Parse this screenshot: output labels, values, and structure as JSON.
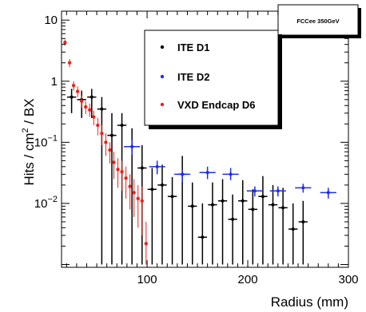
{
  "colors": {
    "ITE D1": "#000000",
    "ITE D2": "#1f2ee6",
    "VXD Endcap D6": "#e8231c"
  },
  "chart_data": {
    "type": "scatter",
    "title": "",
    "tag": "FCCee 350GeV",
    "xlabel": "Radius (mm)",
    "ylabel_parts": {
      "prefix": "Hits / cm",
      "sup": "2",
      "suffix": " / BX"
    },
    "xlim": [
      15,
      300
    ],
    "ylim": [
      0.0009,
      14
    ],
    "yscale": "log",
    "x_ticks": [
      {
        "value": 100,
        "label": "100"
      },
      {
        "value": 200,
        "label": "200"
      },
      {
        "value": 300,
        "label": "300"
      }
    ],
    "y_ticks": [
      {
        "value": 10,
        "base": "10",
        "exp": ""
      },
      {
        "value": 1,
        "base": "1",
        "exp": ""
      },
      {
        "value": 0.1,
        "base": "10",
        "exp": "−1"
      },
      {
        "value": 0.01,
        "base": "10",
        "exp": "−2"
      }
    ],
    "legend": {
      "placement": "top-center"
    },
    "series": [
      {
        "name": "ITE D1",
        "marker": "black-dot-with-errors",
        "points": [
          {
            "x": 25,
            "xerr": 4.5,
            "y": 0.55,
            "ylo": 0.3,
            "yhi": 0.75
          },
          {
            "x": 35,
            "xerr": 4.5,
            "y": 0.5,
            "ylo": 0.25,
            "yhi": 0.7
          },
          {
            "x": 45,
            "xerr": 4.5,
            "y": 0.55,
            "ylo": 0.25,
            "yhi": 0.75
          },
          {
            "x": 55,
            "xerr": 4.5,
            "y": 0.35,
            "ylo": 0.001,
            "yhi": 0.55
          },
          {
            "x": 65,
            "xerr": 4.5,
            "y": 0.13,
            "ylo": 0.001,
            "yhi": 0.3
          },
          {
            "x": 75,
            "xerr": 4.5,
            "y": 0.19,
            "ylo": 0.001,
            "yhi": 0.3
          },
          {
            "x": 85,
            "xerr": 4.5,
            "y": 0.085,
            "ylo": 0.001,
            "yhi": 0.17
          },
          {
            "x": 95,
            "xerr": 4.5,
            "y": 0.038,
            "ylo": 0.001,
            "yhi": 0.09
          },
          {
            "x": 105,
            "xerr": 4.5,
            "y": 0.017,
            "ylo": 0.001,
            "yhi": 0.038
          },
          {
            "x": 115,
            "xerr": 4.5,
            "y": 0.02,
            "ylo": 0.001,
            "yhi": 0.043
          },
          {
            "x": 125,
            "xerr": 4.5,
            "y": 0.013,
            "ylo": 0.001,
            "yhi": 0.027
          },
          {
            "x": 135,
            "xerr": 4.5,
            "y": 0.03,
            "ylo": 0.001,
            "yhi": 0.06
          },
          {
            "x": 145,
            "xerr": 4.5,
            "y": 0.009,
            "ylo": 0.001,
            "yhi": 0.022
          },
          {
            "x": 155,
            "xerr": 4.5,
            "y": 0.0028,
            "ylo": 0.001,
            "yhi": 0.01
          },
          {
            "x": 165,
            "xerr": 4.5,
            "y": 0.0095,
            "ylo": 0.001,
            "yhi": 0.022
          },
          {
            "x": 175,
            "xerr": 4.5,
            "y": 0.011,
            "ylo": 0.001,
            "yhi": 0.025
          },
          {
            "x": 185,
            "xerr": 4.5,
            "y": 0.0055,
            "ylo": 0.001,
            "yhi": 0.014
          },
          {
            "x": 195,
            "xerr": 4.5,
            "y": 0.011,
            "ylo": 0.001,
            "yhi": 0.024
          },
          {
            "x": 205,
            "xerr": 4.5,
            "y": 0.008,
            "ylo": 0.001,
            "yhi": 0.017
          },
          {
            "x": 215,
            "xerr": 4.5,
            "y": 0.013,
            "ylo": 0.001,
            "yhi": 0.028
          },
          {
            "x": 225,
            "xerr": 4.5,
            "y": 0.0095,
            "ylo": 0.001,
            "yhi": 0.02
          },
          {
            "x": 235,
            "xerr": 4.5,
            "y": 0.0085,
            "ylo": 0.001,
            "yhi": 0.018
          },
          {
            "x": 245,
            "xerr": 4.5,
            "y": 0.0038,
            "ylo": 0.001,
            "yhi": 0.01
          },
          {
            "x": 255,
            "xerr": 4.5,
            "y": 0.005,
            "ylo": 0.001,
            "yhi": 0.011
          }
        ]
      },
      {
        "name": "ITE D2",
        "marker": "blue-cross",
        "points": [
          {
            "x": 85,
            "xerr": 8,
            "y": 0.085,
            "ylo": 0.062,
            "yhi": 0.11
          },
          {
            "x": 110,
            "xerr": 8,
            "y": 0.04,
            "ylo": 0.03,
            "yhi": 0.05
          },
          {
            "x": 135,
            "xerr": 8,
            "y": 0.03,
            "ylo": 0.022,
            "yhi": 0.036
          },
          {
            "x": 160,
            "xerr": 8,
            "y": 0.032,
            "ylo": 0.025,
            "yhi": 0.04
          },
          {
            "x": 183,
            "xerr": 8,
            "y": 0.03,
            "ylo": 0.024,
            "yhi": 0.038
          },
          {
            "x": 207,
            "xerr": 8,
            "y": 0.016,
            "ylo": 0.013,
            "yhi": 0.019
          },
          {
            "x": 230,
            "xerr": 8,
            "y": 0.016,
            "ylo": 0.013,
            "yhi": 0.019
          },
          {
            "x": 255,
            "xerr": 8,
            "y": 0.018,
            "ylo": 0.015,
            "yhi": 0.021
          },
          {
            "x": 280,
            "xerr": 8,
            "y": 0.015,
            "ylo": 0.012,
            "yhi": 0.018
          }
        ]
      },
      {
        "name": "VXD Endcap D6",
        "marker": "red-dot",
        "points": [
          {
            "x": 18.5,
            "y": 4.3,
            "ylo": 3.8,
            "yhi": 4.8
          },
          {
            "x": 23,
            "y": 2.0,
            "ylo": 1.7,
            "yhi": 2.3
          },
          {
            "x": 27,
            "y": 0.85,
            "ylo": 0.7,
            "yhi": 1.0
          },
          {
            "x": 31,
            "y": 0.68,
            "ylo": 0.55,
            "yhi": 0.82
          },
          {
            "x": 35,
            "y": 0.47,
            "ylo": 0.37,
            "yhi": 0.58
          },
          {
            "x": 39,
            "y": 0.38,
            "ylo": 0.29,
            "yhi": 0.47
          },
          {
            "x": 43,
            "y": 0.34,
            "ylo": 0.26,
            "yhi": 0.43
          },
          {
            "x": 47,
            "y": 0.26,
            "ylo": 0.19,
            "yhi": 0.33
          },
          {
            "x": 51,
            "y": 0.19,
            "ylo": 0.13,
            "yhi": 0.25
          },
          {
            "x": 55,
            "y": 0.14,
            "ylo": 0.09,
            "yhi": 0.19
          },
          {
            "x": 59,
            "y": 0.1,
            "ylo": 0.06,
            "yhi": 0.14
          },
          {
            "x": 63,
            "y": 0.075,
            "ylo": 0.045,
            "yhi": 0.1
          },
          {
            "x": 67,
            "y": 0.047,
            "ylo": 0.025,
            "yhi": 0.07
          },
          {
            "x": 71,
            "y": 0.036,
            "ylo": 0.018,
            "yhi": 0.055
          },
          {
            "x": 75,
            "y": 0.033,
            "ylo": 0.016,
            "yhi": 0.05
          },
          {
            "x": 79,
            "y": 0.026,
            "ylo": 0.012,
            "yhi": 0.04
          },
          {
            "x": 83,
            "y": 0.019,
            "ylo": 0.008,
            "yhi": 0.03
          },
          {
            "x": 87,
            "y": 0.015,
            "ylo": 0.006,
            "yhi": 0.025
          },
          {
            "x": 91,
            "y": 0.012,
            "ylo": 0.004,
            "yhi": 0.02
          },
          {
            "x": 95,
            "y": 0.011,
            "ylo": 0.003,
            "yhi": 0.019
          },
          {
            "x": 99,
            "y": 0.0022,
            "ylo": 0.001,
            "yhi": 0.005
          }
        ]
      }
    ]
  }
}
